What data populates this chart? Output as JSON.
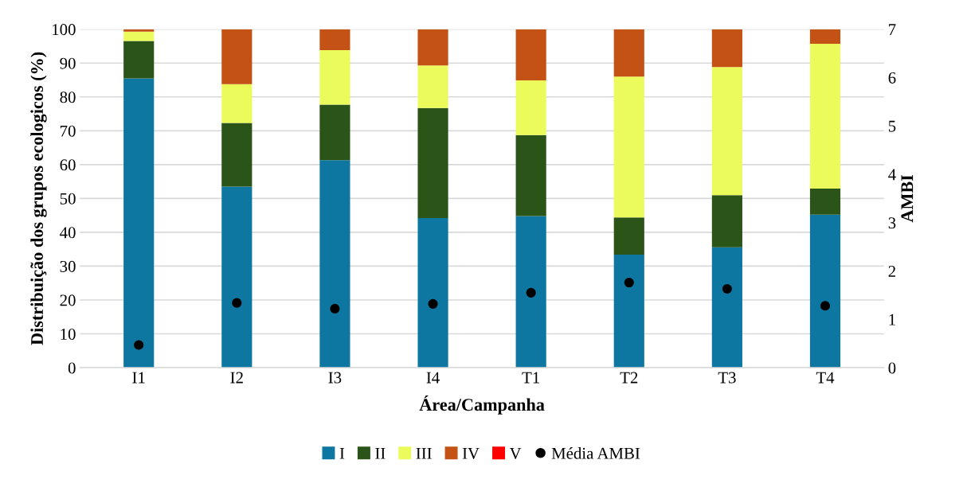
{
  "chart_data": {
    "type": "bar",
    "stacked": true,
    "categories": [
      "I1",
      "I2",
      "I3",
      "I4",
      "T1",
      "T2",
      "T3",
      "T4"
    ],
    "xlabel": "Área/Campanha",
    "ylabel": "Distribuição dos grupos ecologicos (%)",
    "y2label": "AMBI",
    "ylim": [
      0,
      100
    ],
    "yticks": [
      0,
      10,
      20,
      30,
      40,
      50,
      60,
      70,
      80,
      90,
      100
    ],
    "y2lim": [
      0,
      7
    ],
    "y2ticks": [
      0,
      1,
      2,
      3,
      4,
      5,
      6,
      7
    ],
    "grid": "y",
    "legend": "bottom",
    "series": [
      {
        "name": "I",
        "color": "#0e77a1",
        "values": [
          85.5,
          53.5,
          61.3,
          44.2,
          44.8,
          33.4,
          35.6,
          45.2
        ]
      },
      {
        "name": "II",
        "color": "#2a5418",
        "values": [
          11,
          18.8,
          16.4,
          32.5,
          23.9,
          11,
          15.4,
          7.7
        ]
      },
      {
        "name": "III",
        "color": "#ecfb5c",
        "values": [
          2.8,
          11.5,
          16.1,
          12.6,
          16.2,
          41.6,
          37.8,
          42.8
        ]
      },
      {
        "name": "IV",
        "color": "#c35214",
        "values": [
          0.7,
          16.2,
          6.2,
          10.7,
          15.1,
          14,
          11.2,
          4.3
        ]
      },
      {
        "name": "V",
        "color": "#ff0000",
        "values": [
          0,
          0,
          0,
          0,
          0,
          0,
          0,
          0
        ]
      },
      {
        "name": "Média AMBI",
        "type": "scatter",
        "axis": "y2",
        "marker": "circle",
        "color": "#000000",
        "values": [
          0.47,
          1.34,
          1.22,
          1.32,
          1.55,
          1.76,
          1.63,
          1.28
        ]
      }
    ]
  }
}
